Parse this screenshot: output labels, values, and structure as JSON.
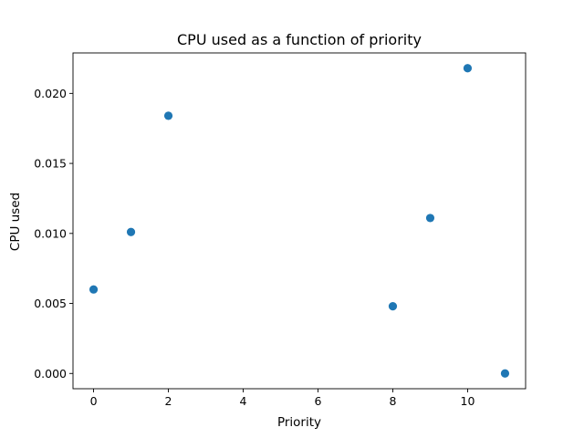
{
  "chart_data": {
    "type": "scatter",
    "title": "CPU used as a function of priority",
    "xlabel": "Priority",
    "ylabel": "CPU used",
    "xlim": [
      -0.55,
      11.55
    ],
    "ylim": [
      -0.00109,
      0.02289
    ],
    "x_ticks": [
      0,
      2,
      4,
      6,
      8,
      10
    ],
    "x_tick_labels": [
      "0",
      "2",
      "4",
      "6",
      "8",
      "10"
    ],
    "y_ticks": [
      0.0,
      0.005,
      0.01,
      0.015,
      0.02
    ],
    "y_tick_labels": [
      "0.000",
      "0.005",
      "0.010",
      "0.015",
      "0.020"
    ],
    "grid": false,
    "legend": false,
    "marker_color": "#1f77b4",
    "series": [
      {
        "x": [
          0,
          1,
          2,
          8,
          9,
          10,
          11
        ],
        "y": [
          0.006,
          0.0101,
          0.0184,
          0.0048,
          0.0111,
          0.0218,
          0.0
        ]
      }
    ]
  }
}
